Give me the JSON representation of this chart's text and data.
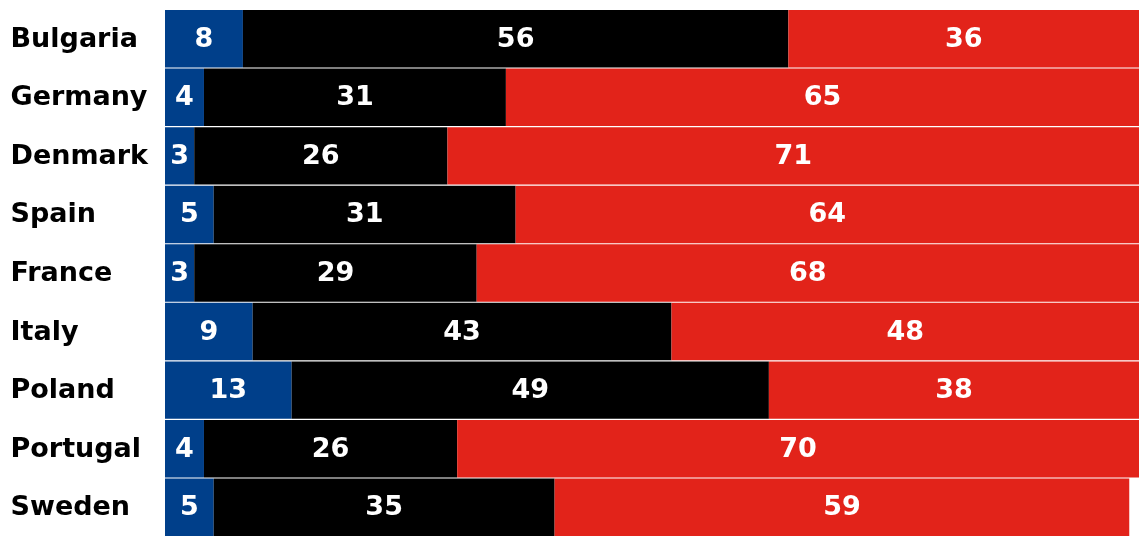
{
  "chart_data": {
    "type": "bar",
    "orientation": "horizontal",
    "stacked": true,
    "data_labels": true,
    "tick_labels": "y",
    "xlim": [
      0,
      100
    ],
    "categories": [
      "Bulgaria",
      "Germany",
      "Denmark",
      "Spain",
      "France",
      "Italy",
      "Poland",
      "Portugal",
      "Sweden"
    ],
    "series": [
      {
        "color": "#003f8a",
        "values": [
          8,
          4,
          3,
          5,
          3,
          9,
          13,
          4,
          5
        ]
      },
      {
        "color": "#000000",
        "values": [
          56,
          31,
          26,
          31,
          29,
          43,
          49,
          26,
          35
        ]
      },
      {
        "color": "#e2231a",
        "values": [
          36,
          65,
          71,
          64,
          68,
          48,
          38,
          70,
          59
        ]
      }
    ]
  }
}
